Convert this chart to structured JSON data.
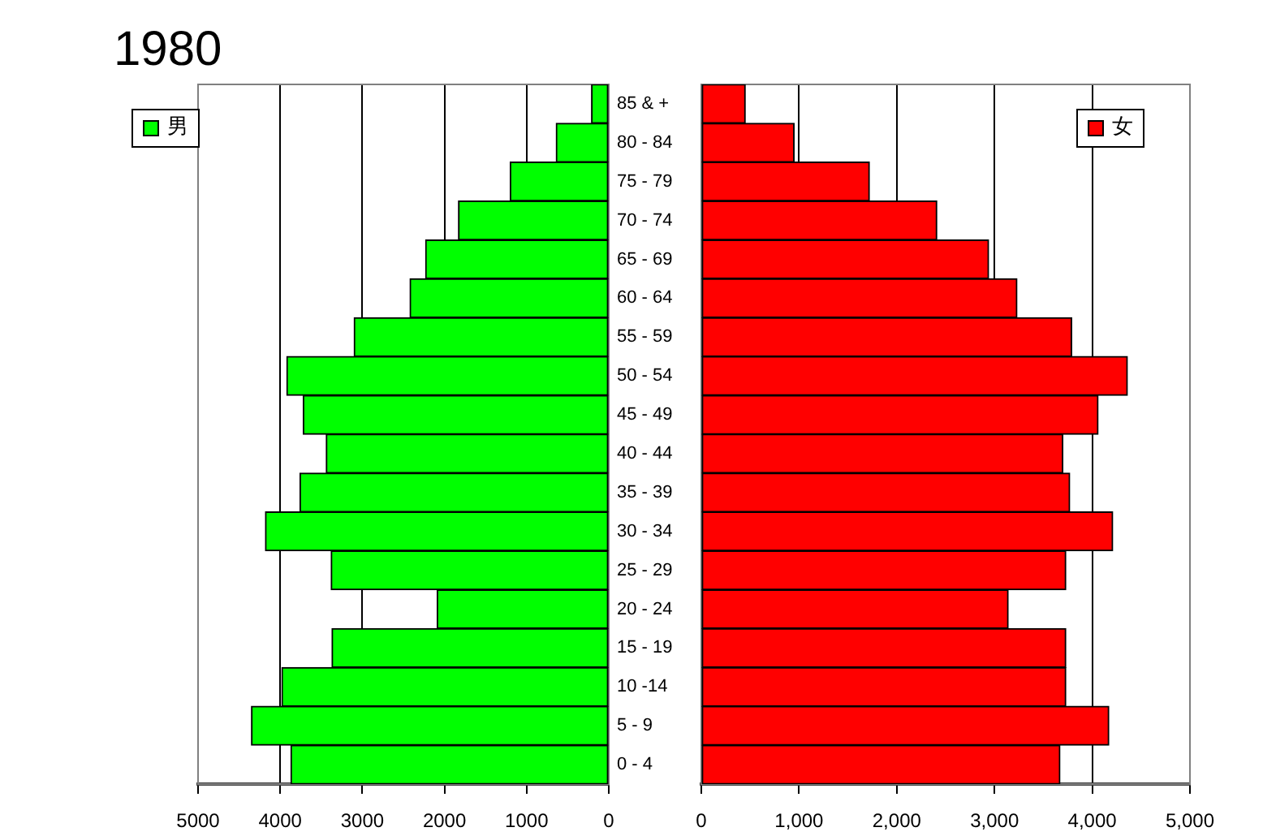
{
  "chart_data": [
    {
      "type": "bar",
      "title": "1980",
      "orientation": "horizontal",
      "categories": [
        null,
        null,
        null,
        null,
        null,
        null,
        null,
        null,
        null,
        null,
        null,
        null,
        null,
        null,
        null,
        null,
        null,
        null
      ],
      "series": [
        {
          "name": "男",
          "color": "#00ff00",
          "values": [
            210,
            640,
            1200,
            1830,
            2230,
            2420,
            3100,
            3920,
            3720,
            3440,
            3760,
            4180,
            3380,
            2090,
            3370,
            3980,
            4350,
            3870
          ]
        }
      ],
      "xlim": [
        5000,
        0
      ],
      "xticks": [
        5000,
        4000,
        3000,
        2000,
        1000,
        0
      ],
      "grid": "x",
      "legend": "top left",
      "tick_labels": "x"
    },
    {
      "type": "bar",
      "orientation": "horizontal",
      "categories": [
        "85 & +",
        "80 - 84",
        "75 - 79",
        "70 - 74",
        "65 - 69",
        "60 - 64",
        "55 - 59",
        "50 - 54",
        "45 - 49",
        "40 - 44",
        "35 - 39",
        "30 - 34",
        "25 - 29",
        "20 - 24",
        "15 - 19",
        "10 -14",
        "5 - 9",
        "0 - 4"
      ],
      "series": [
        {
          "name": "女",
          "color": "#ff0000",
          "values": [
            450,
            950,
            1720,
            2410,
            2940,
            3230,
            3790,
            4360,
            4060,
            3700,
            3770,
            4210,
            3730,
            3140,
            3730,
            3730,
            4170,
            3670
          ]
        }
      ],
      "xlim": [
        0,
        5000
      ],
      "xticks": [
        0,
        {
          "value": 1000,
          "label": "1,000"
        },
        {
          "value": 2000,
          "label": "2,000"
        },
        {
          "value": 3000,
          "label": "3,000"
        },
        {
          "value": 4000,
          "label": "4,000"
        },
        {
          "value": 5000,
          "label": "5,000"
        }
      ],
      "grid": "x",
      "legend": "top right"
    }
  ]
}
